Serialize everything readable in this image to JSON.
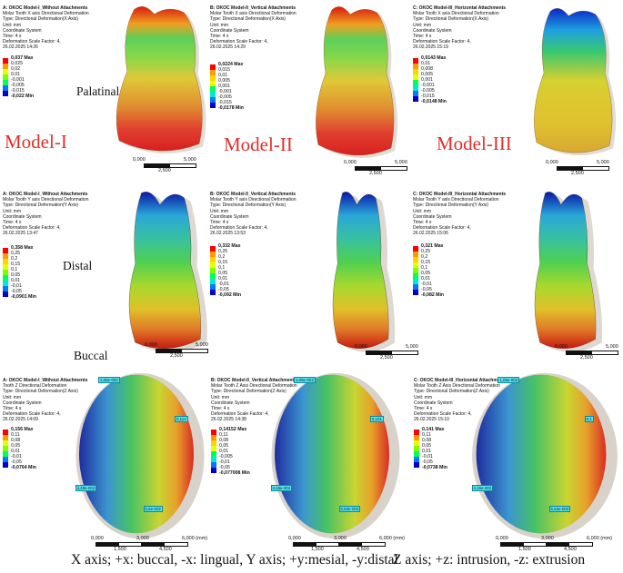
{
  "panels": [
    {
      "id": "p1",
      "header": [
        "A: OKOC Model-I_Without Attachments",
        "Molar Tooth X axis Directional Deformation",
        "Type: Directional Deformation(X Axis)",
        "Unit: mm",
        "Coordinate System",
        "Time: 4 s",
        "Deformation Scale Factor: 4,",
        "26.02.2025 14:26"
      ],
      "legend": [
        "0,037 Max",
        "0,025",
        "0,02",
        "0,01",
        "-0,001",
        "-0,005",
        "-0,015",
        "-0,022 Min"
      ],
      "scale": [
        "0,000",
        "2,500",
        "5,000"
      ]
    },
    {
      "id": "p2",
      "header": [
        "B: OKOC Model-II_Vertical Attachments",
        "Molar Tooth X axis Directional Deformation",
        "Type: Directional Deformation(X Axis)",
        "Unit: mm",
        "Coordinate System",
        "Time: 4 s",
        "Deformation Scale Factor: 4,",
        "26.02.2025 14:29"
      ],
      "legend": [
        "0,0224 Max",
        "0,015",
        "0,01",
        "0,005",
        "0,001",
        "-0,001",
        "-0,005",
        "-0,015",
        "-0,0178 Min"
      ],
      "scale": [
        "0,000",
        "2,500",
        "5,000"
      ]
    },
    {
      "id": "p3",
      "header": [
        "C: OKOC Model-III_Horizontal Attachments",
        "Molar Tooth X axis Directional Deformation",
        "Type: Directional Deformation(X Axis)",
        "Unit: mm",
        "Coordinate System",
        "Time: 4 s",
        "Deformation Scale Factor: 4,",
        "26.02.2025 15:19"
      ],
      "legend": [
        "0,0143 Max",
        "0,01",
        "0,008",
        "0,005",
        "0,001",
        "-0,001",
        "-0,005",
        "-0,015",
        "-0,0148 Min"
      ],
      "scale": [
        "0,000",
        "2,500",
        "5,000"
      ]
    },
    {
      "id": "p4",
      "header": [
        "A: OKOC Model-I_Without Attachments",
        "Molar Tooth Y axis Directional Deformation",
        "Type: Directional Deformation(Y Axis)",
        "Unit: mm",
        "Coordinate System",
        "Time: 4 s",
        "Deformation Scale Factor: 4,",
        "26.02.2025 13:47"
      ],
      "legend": [
        "0,358 Max",
        "0,25",
        "0,2",
        "0,15",
        "0,1",
        "0,05",
        "0,01",
        "-0,01",
        "-0,05",
        "-0,0901 Min"
      ],
      "scale": [
        "0,000",
        "2,500",
        "5,000"
      ]
    },
    {
      "id": "p5",
      "header": [
        "B: OKOC Model-II_Vertical Attachments",
        "Molar Tooth Y axis Directional Deformation",
        "Type: Directional Deformation(Y Axis)",
        "Unit: mm",
        "Coordinate System",
        "Time: 4 s",
        "Deformation Scale Factor: 4,",
        "26.02.2025 13:53"
      ],
      "legend": [
        "0,332 Max",
        "0,25",
        "0,2",
        "0,15",
        "0,1",
        "0,05",
        "0,01",
        "-0,01",
        "-0,05",
        "-0,092 Min"
      ],
      "scale": [
        "0,000",
        "2,500",
        "5,000"
      ]
    },
    {
      "id": "p6",
      "header": [
        "C: OKOC Model-III_Horizontal Attachments",
        "Molar Tooth Y axis Directional Deformation",
        "Type: Directional Deformation(Y Axis)",
        "Unit: mm",
        "Coordinate System",
        "Time: 4 s",
        "Deformation Scale Factor: 4,",
        "26.02.2025 15:06"
      ],
      "legend": [
        "0,321 Max",
        "0,25",
        "0,2",
        "0,15",
        "0,1",
        "0,05",
        "0,01",
        "-0,01",
        "-0,05",
        "-0,082 Min"
      ],
      "scale": [
        "0,000",
        "2,500",
        "5,000"
      ]
    },
    {
      "id": "p7",
      "header": [
        "A: OKOC Model-I_Without Attachments",
        "Tooth Z Directional Deformation",
        "Type: Directional Deformation(Z Axis)",
        "Unit: mm",
        "Coordinate System",
        "Time: 4 s",
        "Deformation Scale Factor: 4,",
        "26.02.2025 14:09"
      ],
      "legend": [
        "0,156 Max",
        "0,11",
        "0,08",
        "0,05",
        "0,01",
        "-0,01",
        "-0,05",
        "-0,0764 Min"
      ],
      "scale": [
        "0,000",
        "1,500",
        "3,000",
        "4,500",
        "6,000 (mm)"
      ],
      "tags": [
        "1,05e-002",
        "0,114",
        "4,48e-002",
        "5,6e-002"
      ]
    },
    {
      "id": "p8",
      "header": [
        "B: OKOC Model-II_Vertical Attachments",
        "Molar Tooth Z Axis Directional Deformation",
        "Type: Directional Deformation(Z Axis)",
        "Unit: mm",
        "Coordinate System",
        "Time: 4 s",
        "Deformation Scale Factor: 4,",
        "26.02.2025 14:38"
      ],
      "legend": [
        "0,14152 Max",
        "0,11",
        "0,08",
        "0,05",
        "0,01",
        "-0,005",
        "-0,01",
        "-0,05",
        "-0,077008 Min"
      ],
      "scale": [
        "0,000",
        "1,500",
        "3,000",
        "4,500",
        "6,000 (mm)"
      ],
      "tags": [
        "1,09e-002",
        "0,101",
        "4,18e-002",
        "5,53e-002"
      ]
    },
    {
      "id": "p9",
      "header": [
        "C: OKOC Model-III_Horizontal Attachments",
        "Molar Tooth Z Axis Directional Deformation",
        "Type: Directional Deformation(Z Axis)",
        "Unit: mm",
        "Coordinate System",
        "Time: 4 s",
        "Deformation Scale Factor: 4,",
        "26.02.2025 15:10"
      ],
      "legend": [
        "0,141 Max",
        "0,11",
        "0,08",
        "0,05",
        "0,01",
        "-0,01",
        "-0,05",
        "-0,0738 Min"
      ],
      "scale": [
        "0,000",
        "1,500",
        "3,000",
        "4,500",
        "6,000 (mm)"
      ],
      "tags": [
        "1,05e-002",
        "0,1",
        "4,15e-002",
        "5,53e-002"
      ]
    }
  ],
  "models": [
    "Model-I",
    "Model-II",
    "Model-III"
  ],
  "views": [
    "Palatinal",
    "Distal",
    "Buccal"
  ],
  "caption": {
    "left": "X axis; +x: buccal, -x: lingual, Y axis; +y:mesial, -y:distal",
    "right": "Z axis; +z: intrusion, -z: extrusion"
  },
  "legend_colors": [
    "#ff0000",
    "#ff9a00",
    "#ffd400",
    "#e7ff00",
    "#7dff00",
    "#00ff5a",
    "#00e8d8",
    "#0078ff",
    "#0000c8"
  ]
}
